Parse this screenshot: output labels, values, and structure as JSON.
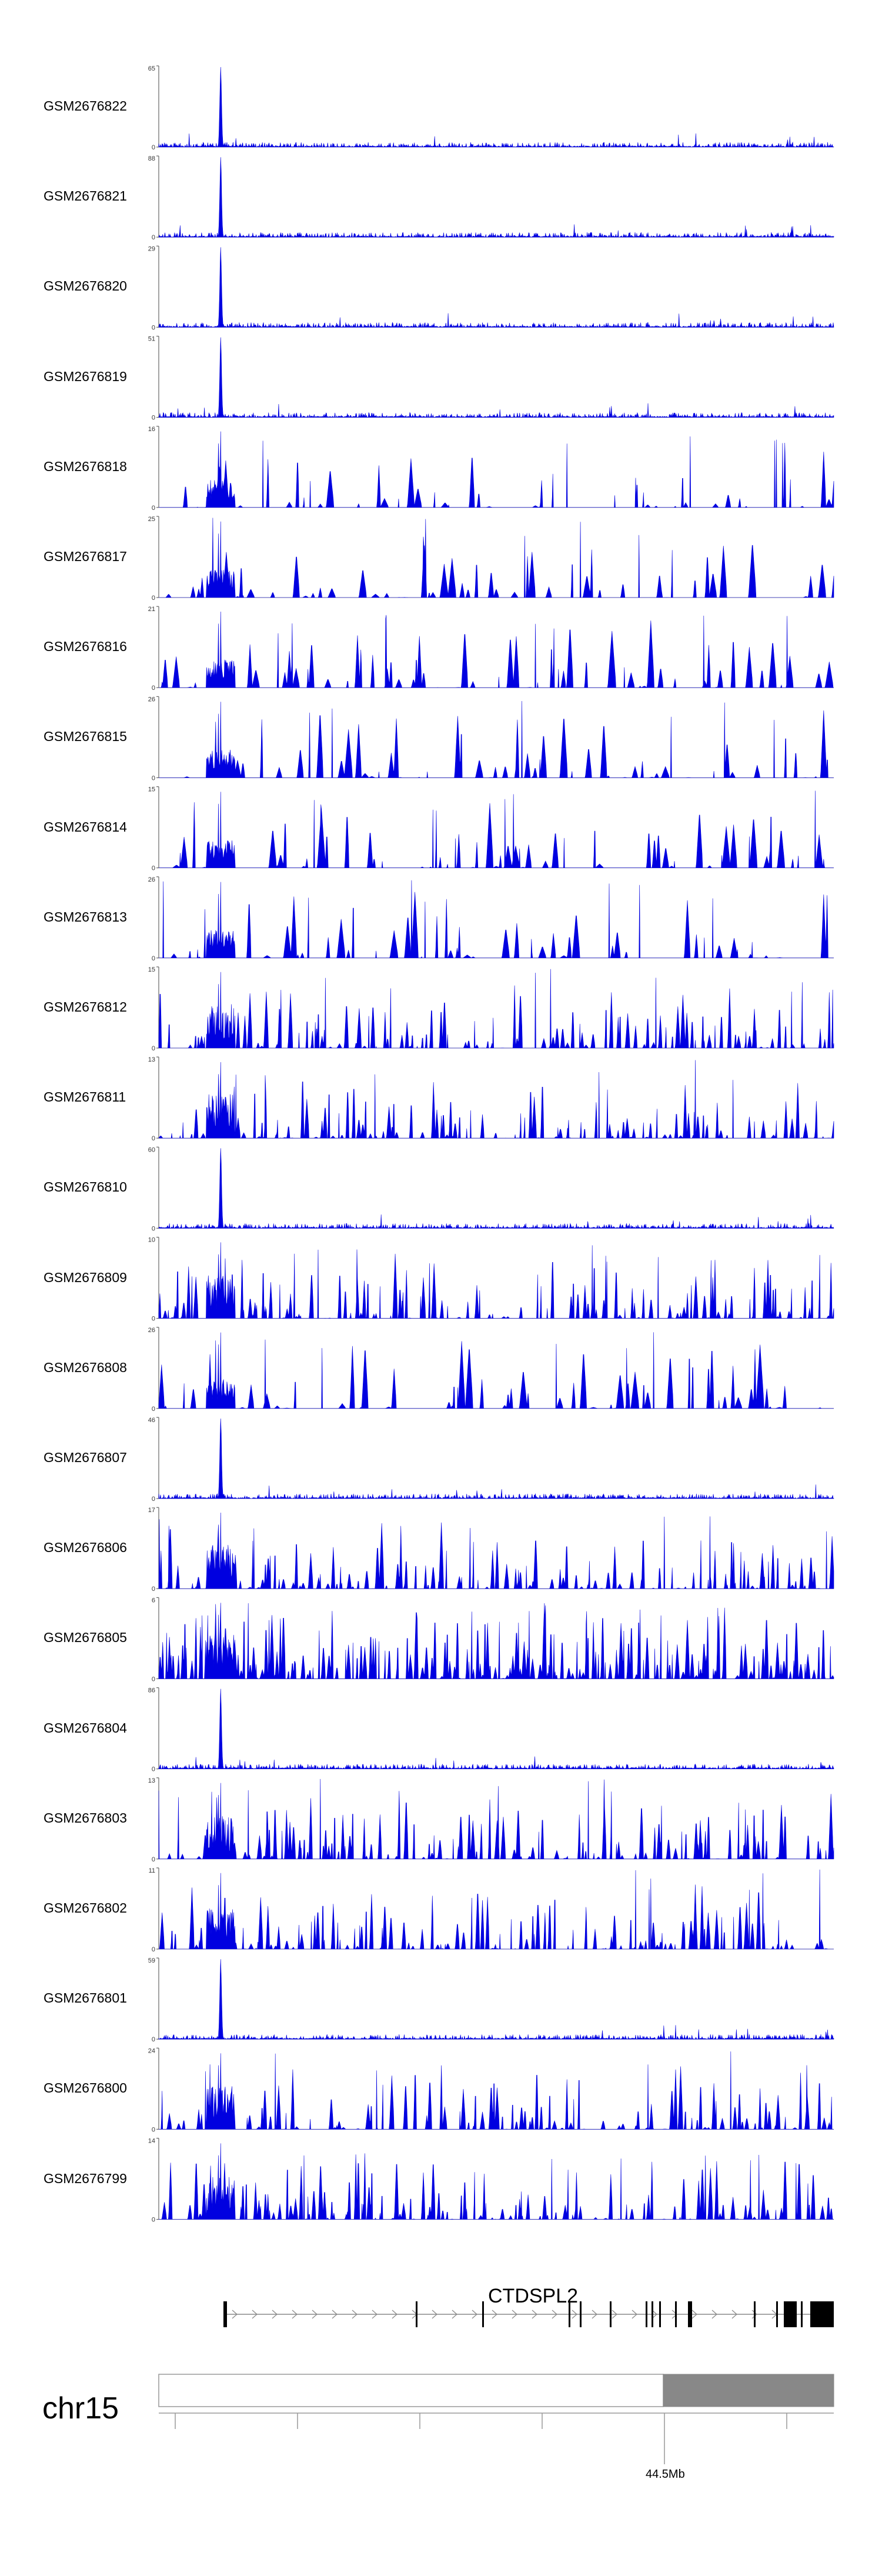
{
  "chart_data": {
    "type": "area",
    "title": "",
    "xlabel": "",
    "ylabel": "",
    "fill_color": "#0000e0",
    "tracks": [
      {
        "name": "GSM2676822",
        "ymax": 65,
        "ymin": 0,
        "profile": "sharp"
      },
      {
        "name": "GSM2676821",
        "ymax": 88,
        "ymin": 0,
        "profile": "sharp"
      },
      {
        "name": "GSM2676820",
        "ymax": 29,
        "ymin": 0,
        "profile": "sharp"
      },
      {
        "name": "GSM2676819",
        "ymax": 51,
        "ymin": 0,
        "profile": "sharp"
      },
      {
        "name": "GSM2676818",
        "ymax": 16,
        "ymin": 0,
        "profile": "noisy"
      },
      {
        "name": "GSM2676817",
        "ymax": 25,
        "ymin": 0,
        "profile": "noisy"
      },
      {
        "name": "GSM2676816",
        "ymax": 21,
        "ymin": 0,
        "profile": "noisy"
      },
      {
        "name": "GSM2676815",
        "ymax": 26,
        "ymin": 0,
        "profile": "noisy"
      },
      {
        "name": "GSM2676814",
        "ymax": 15,
        "ymin": 0,
        "profile": "noisy"
      },
      {
        "name": "GSM2676813",
        "ymax": 26,
        "ymin": 0,
        "profile": "noisy"
      },
      {
        "name": "GSM2676812",
        "ymax": 15,
        "ymin": 0,
        "profile": "mixed"
      },
      {
        "name": "GSM2676811",
        "ymax": 13,
        "ymin": 0,
        "profile": "mixed"
      },
      {
        "name": "GSM2676810",
        "ymax": 60,
        "ymin": 0,
        "profile": "sharp"
      },
      {
        "name": "GSM2676809",
        "ymax": 10,
        "ymin": 0,
        "profile": "mixed"
      },
      {
        "name": "GSM2676808",
        "ymax": 26,
        "ymin": 0,
        "profile": "noisy"
      },
      {
        "name": "GSM2676807",
        "ymax": 46,
        "ymin": 0,
        "profile": "sharp"
      },
      {
        "name": "GSM2676806",
        "ymax": 17,
        "ymin": 0,
        "profile": "mixed"
      },
      {
        "name": "GSM2676805",
        "ymax": 6,
        "ymin": 0,
        "profile": "dense"
      },
      {
        "name": "GSM2676804",
        "ymax": 86,
        "ymin": 0,
        "profile": "sharp"
      },
      {
        "name": "GSM2676803",
        "ymax": 13,
        "ymin": 0,
        "profile": "mixed"
      },
      {
        "name": "GSM2676802",
        "ymax": 11,
        "ymin": 0,
        "profile": "mixed"
      },
      {
        "name": "GSM2676801",
        "ymax": 59,
        "ymin": 0,
        "profile": "sharp"
      },
      {
        "name": "GSM2676800",
        "ymax": 24,
        "ymin": 0,
        "profile": "mixed"
      },
      {
        "name": "GSM2676799",
        "ymax": 14,
        "ymin": 0,
        "profile": "mixed"
      }
    ],
    "gene": {
      "name": "CTDSPL2",
      "strand": "+"
    },
    "ideogram": {
      "chromosome": "chr15",
      "position_label": "44.5Mb"
    }
  }
}
